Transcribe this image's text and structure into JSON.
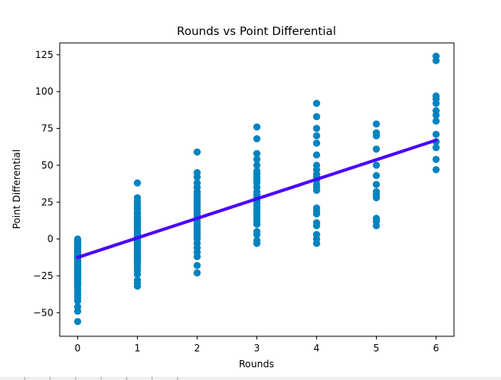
{
  "chart_data": {
    "type": "scatter",
    "title": "Rounds vs Point Differential",
    "xlabel": "Rounds",
    "ylabel": "Point Differential",
    "xlim": [
      -0.3,
      6.3
    ],
    "ylim": [
      -66,
      133
    ],
    "xticks": [
      0,
      1,
      2,
      3,
      4,
      5,
      6
    ],
    "yticks": [
      -50,
      -25,
      0,
      25,
      50,
      75,
      100,
      125
    ],
    "grid": false,
    "legend": "none",
    "point_color": "#0083c0",
    "line_color": "#4a00ff",
    "series": [
      {
        "type": "scatter",
        "points": [
          [
            0,
            0
          ],
          [
            0,
            -1
          ],
          [
            0,
            -2
          ],
          [
            0,
            -3
          ],
          [
            0,
            -4
          ],
          [
            0,
            -5
          ],
          [
            0,
            -6
          ],
          [
            0,
            -7
          ],
          [
            0,
            -8
          ],
          [
            0,
            -9
          ],
          [
            0,
            -10
          ],
          [
            0,
            -11
          ],
          [
            0,
            -12
          ],
          [
            0,
            -13
          ],
          [
            0,
            -14
          ],
          [
            0,
            -15
          ],
          [
            0,
            -16
          ],
          [
            0,
            -17
          ],
          [
            0,
            -18
          ],
          [
            0,
            -19
          ],
          [
            0,
            -20
          ],
          [
            0,
            -21
          ],
          [
            0,
            -22
          ],
          [
            0,
            -23
          ],
          [
            0,
            -24
          ],
          [
            0,
            -25
          ],
          [
            0,
            -26
          ],
          [
            0,
            -27
          ],
          [
            0,
            -28
          ],
          [
            0,
            -29
          ],
          [
            0,
            -30
          ],
          [
            0,
            -31
          ],
          [
            0,
            -32
          ],
          [
            0,
            -34
          ],
          [
            0,
            -36
          ],
          [
            0,
            -38
          ],
          [
            0,
            -40
          ],
          [
            0,
            -42
          ],
          [
            0,
            -46
          ],
          [
            0,
            -49
          ],
          [
            0,
            -56
          ],
          [
            1,
            38
          ],
          [
            1,
            28
          ],
          [
            1,
            26
          ],
          [
            1,
            24
          ],
          [
            1,
            22
          ],
          [
            1,
            20
          ],
          [
            1,
            18
          ],
          [
            1,
            17
          ],
          [
            1,
            15
          ],
          [
            1,
            14
          ],
          [
            1,
            13
          ],
          [
            1,
            12
          ],
          [
            1,
            11
          ],
          [
            1,
            10
          ],
          [
            1,
            9
          ],
          [
            1,
            8
          ],
          [
            1,
            7
          ],
          [
            1,
            6
          ],
          [
            1,
            5
          ],
          [
            1,
            4
          ],
          [
            1,
            3
          ],
          [
            1,
            2
          ],
          [
            1,
            1
          ],
          [
            1,
            0
          ],
          [
            1,
            -1
          ],
          [
            1,
            -2
          ],
          [
            1,
            -3
          ],
          [
            1,
            -4
          ],
          [
            1,
            -5
          ],
          [
            1,
            -6
          ],
          [
            1,
            -7
          ],
          [
            1,
            -8
          ],
          [
            1,
            -9
          ],
          [
            1,
            -10
          ],
          [
            1,
            -11
          ],
          [
            1,
            -12
          ],
          [
            1,
            -13
          ],
          [
            1,
            -14
          ],
          [
            1,
            -15
          ],
          [
            1,
            -16
          ],
          [
            1,
            -18
          ],
          [
            1,
            -20
          ],
          [
            1,
            -22
          ],
          [
            1,
            -24
          ],
          [
            1,
            -28
          ],
          [
            1,
            -30
          ],
          [
            1,
            -32
          ],
          [
            2,
            59
          ],
          [
            2,
            45
          ],
          [
            2,
            42
          ],
          [
            2,
            38
          ],
          [
            2,
            35
          ],
          [
            2,
            32
          ],
          [
            2,
            30
          ],
          [
            2,
            28
          ],
          [
            2,
            26
          ],
          [
            2,
            24
          ],
          [
            2,
            22
          ],
          [
            2,
            20
          ],
          [
            2,
            18
          ],
          [
            2,
            16
          ],
          [
            2,
            14
          ],
          [
            2,
            12
          ],
          [
            2,
            10
          ],
          [
            2,
            8
          ],
          [
            2,
            6
          ],
          [
            2,
            4
          ],
          [
            2,
            2
          ],
          [
            2,
            0
          ],
          [
            2,
            -3
          ],
          [
            2,
            -6
          ],
          [
            2,
            -9
          ],
          [
            2,
            -12
          ],
          [
            2,
            -18
          ],
          [
            2,
            -23
          ],
          [
            3,
            76
          ],
          [
            3,
            68
          ],
          [
            3,
            58
          ],
          [
            3,
            54
          ],
          [
            3,
            50
          ],
          [
            3,
            46
          ],
          [
            3,
            44
          ],
          [
            3,
            42
          ],
          [
            3,
            40
          ],
          [
            3,
            38
          ],
          [
            3,
            35
          ],
          [
            3,
            32
          ],
          [
            3,
            30
          ],
          [
            3,
            28
          ],
          [
            3,
            26
          ],
          [
            3,
            24
          ],
          [
            3,
            22
          ],
          [
            3,
            20
          ],
          [
            3,
            18
          ],
          [
            3,
            16
          ],
          [
            3,
            14
          ],
          [
            3,
            12
          ],
          [
            3,
            10
          ],
          [
            3,
            5
          ],
          [
            3,
            3
          ],
          [
            3,
            -1
          ],
          [
            3,
            -3
          ],
          [
            4,
            92
          ],
          [
            4,
            83
          ],
          [
            4,
            75
          ],
          [
            4,
            70
          ],
          [
            4,
            65
          ],
          [
            4,
            57
          ],
          [
            4,
            50
          ],
          [
            4,
            47
          ],
          [
            4,
            44
          ],
          [
            4,
            42
          ],
          [
            4,
            40
          ],
          [
            4,
            37
          ],
          [
            4,
            35
          ],
          [
            4,
            33
          ],
          [
            4,
            21
          ],
          [
            4,
            19
          ],
          [
            4,
            17
          ],
          [
            4,
            11
          ],
          [
            4,
            9
          ],
          [
            4,
            3
          ],
          [
            4,
            0
          ],
          [
            4,
            -3
          ],
          [
            5,
            78
          ],
          [
            5,
            72
          ],
          [
            5,
            70
          ],
          [
            5,
            61
          ],
          [
            5,
            50
          ],
          [
            5,
            43
          ],
          [
            5,
            37
          ],
          [
            5,
            32
          ],
          [
            5,
            30
          ],
          [
            5,
            28
          ],
          [
            5,
            14
          ],
          [
            5,
            12
          ],
          [
            5,
            9
          ],
          [
            6,
            124
          ],
          [
            6,
            121
          ],
          [
            6,
            97
          ],
          [
            6,
            95
          ],
          [
            6,
            92
          ],
          [
            6,
            87
          ],
          [
            6,
            84
          ],
          [
            6,
            80
          ],
          [
            6,
            71
          ],
          [
            6,
            66
          ],
          [
            6,
            62
          ],
          [
            6,
            54
          ],
          [
            6,
            47
          ]
        ]
      },
      {
        "type": "line",
        "points": [
          [
            0,
            -12.5
          ],
          [
            6,
            67
          ]
        ]
      }
    ]
  }
}
